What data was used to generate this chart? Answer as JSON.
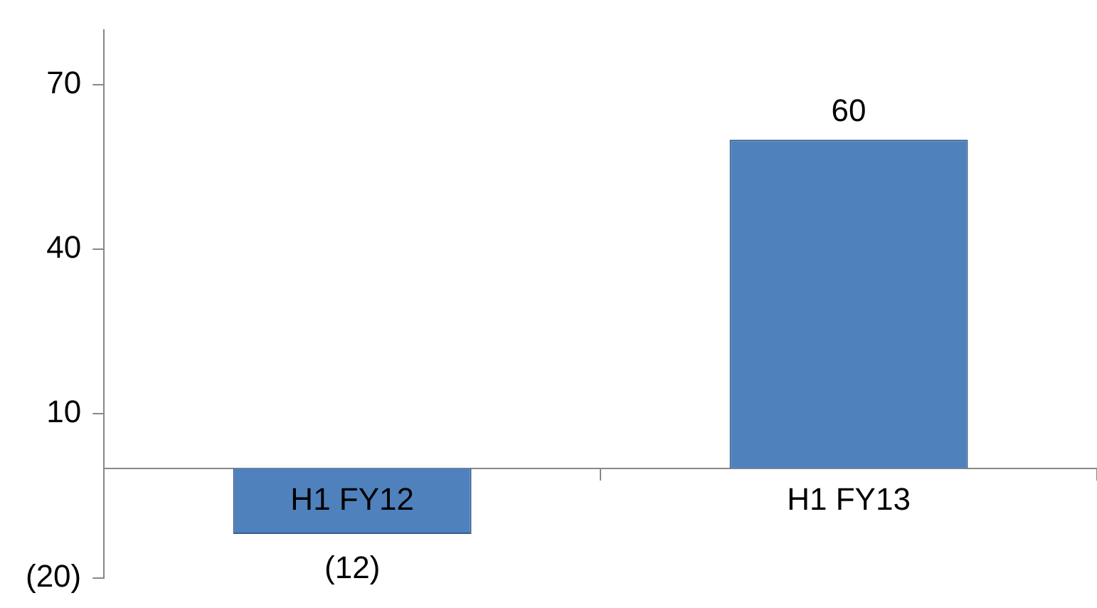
{
  "chart_data": {
    "type": "bar",
    "categories": [
      "H1 FY12",
      "H1 FY13"
    ],
    "values": [
      -12,
      60
    ],
    "color": "#4f81bd",
    "value_labels": [
      "(12)",
      "60"
    ],
    "ylim": [
      -20,
      80
    ],
    "yticks": [
      {
        "value": -20,
        "label": "(20)"
      },
      10,
      40,
      70
    ],
    "grid": false,
    "legend": false
  }
}
